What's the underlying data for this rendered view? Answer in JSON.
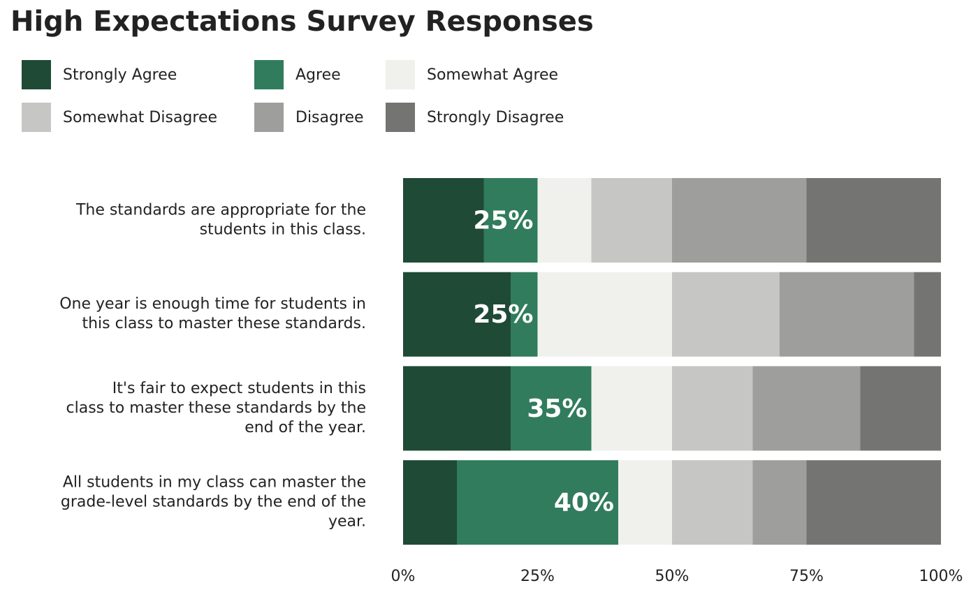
{
  "chart_data": {
    "type": "stacked-bar-horizontal",
    "title": "High Expectations Survey Responses",
    "categories": [
      [
        "The standards are appropriate for the",
        "students in this class."
      ],
      [
        "One year is enough time for students in",
        "this class to master these standards."
      ],
      [
        "It's fair to expect students in this",
        "class to master these standards by the",
        "end of the year."
      ],
      [
        "All students in my class can master the",
        "grade-level standards by the end of the",
        "year."
      ]
    ],
    "series": [
      {
        "name": "Strongly Agree",
        "color": "#1f4a36",
        "values": [
          15,
          20,
          20,
          10
        ]
      },
      {
        "name": "Agree",
        "color": "#317c5c",
        "values": [
          10,
          5,
          15,
          30
        ]
      },
      {
        "name": "Somewhat Agree",
        "color": "#f0f1ed",
        "values": [
          10,
          25,
          15,
          10
        ]
      },
      {
        "name": "Somewhat Disagree",
        "color": "#c6c6c5",
        "values": [
          15,
          20,
          15,
          15
        ]
      },
      {
        "name": "Disagree",
        "color": "#9e9e9d",
        "values": [
          25,
          25,
          20,
          10
        ]
      },
      {
        "name": "Strongly Disagree",
        "color": "#747473",
        "values": [
          25,
          5,
          15,
          25
        ]
      }
    ],
    "agree_totals": {
      "values": [
        25,
        25,
        35,
        40
      ],
      "value_labels": [
        "25%",
        "25%",
        "35%",
        "40%"
      ]
    },
    "xlim": [
      0,
      100
    ],
    "xticks": [
      {
        "value": 0,
        "label": "0%"
      },
      {
        "value": 25,
        "label": "25%"
      },
      {
        "value": 50,
        "label": "50%"
      },
      {
        "value": 75,
        "label": "75%"
      },
      {
        "value": 100,
        "label": "100%"
      }
    ],
    "legend": "top-left"
  }
}
